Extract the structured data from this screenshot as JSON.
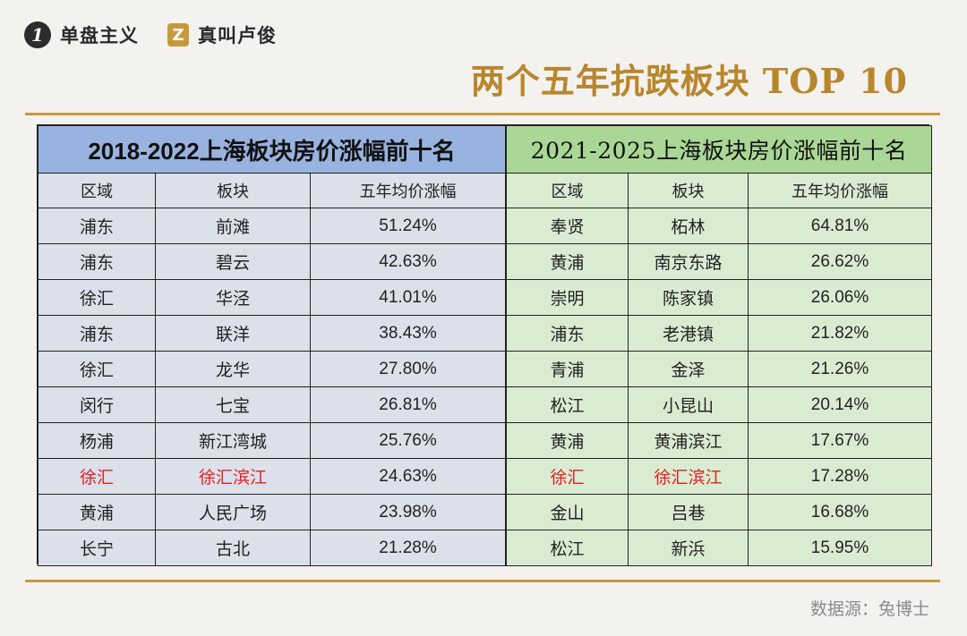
{
  "brand": {
    "logo1_glyph": "1",
    "name1": "单盘主义",
    "logo2_glyph": "Z",
    "name2": "真叫卢俊"
  },
  "title": "两个五年抗跌板块 TOP 10",
  "left_table": {
    "heading": "2018-2022上海板块房价涨幅前十名",
    "columns": [
      "区域",
      "板块",
      "五年均价涨幅"
    ],
    "rows": [
      {
        "district": "浦东",
        "block": "前滩",
        "rise": "51.24%"
      },
      {
        "district": "浦东",
        "block": "碧云",
        "rise": "42.63%"
      },
      {
        "district": "徐汇",
        "block": "华泾",
        "rise": "41.01%"
      },
      {
        "district": "浦东",
        "block": "联洋",
        "rise": "38.43%"
      },
      {
        "district": "徐汇",
        "block": "龙华",
        "rise": "27.80%"
      },
      {
        "district": "闵行",
        "block": "七宝",
        "rise": "26.81%"
      },
      {
        "district": "杨浦",
        "block": "新江湾城",
        "rise": "25.76%"
      },
      {
        "district": "徐汇",
        "block": "徐汇滨江",
        "rise": "24.63%"
      },
      {
        "district": "黄浦",
        "block": "人民广场",
        "rise": "23.98%"
      },
      {
        "district": "长宁",
        "block": "古北",
        "rise": "21.28%"
      }
    ]
  },
  "right_table": {
    "heading": "2021-2025上海板块房价涨幅前十名",
    "columns": [
      "区域",
      "板块",
      "五年均价涨幅"
    ],
    "rows": [
      {
        "district": "奉贤",
        "block": "柘林",
        "rise": "64.81%"
      },
      {
        "district": "黄浦",
        "block": "南京东路",
        "rise": "26.62%"
      },
      {
        "district": "崇明",
        "block": "陈家镇",
        "rise": "26.06%"
      },
      {
        "district": "浦东",
        "block": "老港镇",
        "rise": "21.82%"
      },
      {
        "district": "青浦",
        "block": "金泽",
        "rise": "21.26%"
      },
      {
        "district": "松江",
        "block": "小昆山",
        "rise": "20.14%"
      },
      {
        "district": "黄浦",
        "block": "黄浦滨江",
        "rise": "17.67%"
      },
      {
        "district": "徐汇",
        "block": "徐汇滨江",
        "rise": "17.28%"
      },
      {
        "district": "金山",
        "block": "吕巷",
        "rise": "16.68%"
      },
      {
        "district": "松江",
        "block": "新浜",
        "rise": "15.95%"
      }
    ]
  },
  "highlight_color": "#e02020",
  "source": "数据源：兔博士"
}
